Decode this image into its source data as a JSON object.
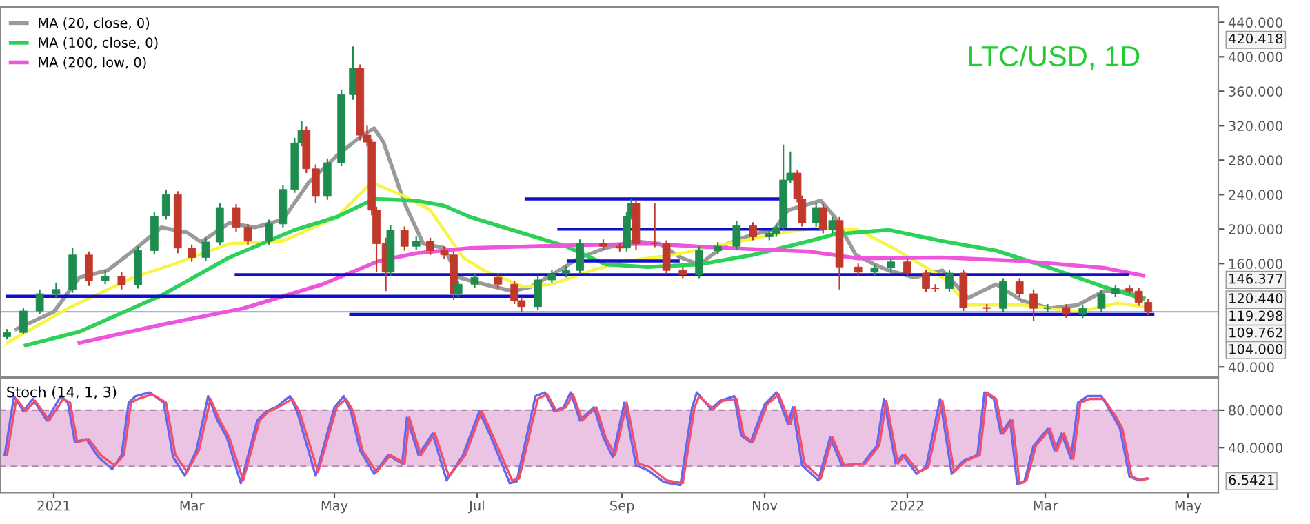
{
  "chart_data": [
    {
      "type": "candlestick",
      "title": "LTC/USD, 1D",
      "xlim": [
        "2020-12-09",
        "2022-05-14"
      ],
      "ylim": [
        28,
        458
      ],
      "yticks": [
        {
          "value": 40,
          "label": "40.000"
        },
        {
          "value": 160,
          "label": "160.000"
        },
        {
          "value": 200,
          "label": "200.000"
        },
        {
          "value": 240,
          "label": "240.000"
        },
        {
          "value": 280,
          "label": "280.000"
        },
        {
          "value": 320,
          "label": "320.000"
        },
        {
          "value": 360,
          "label": "360.000"
        },
        {
          "value": 400,
          "label": "400.000"
        },
        {
          "value": 440,
          "label": "440.000"
        }
      ],
      "tick_labels": "y",
      "grid": false,
      "legend": "top left",
      "x": [
        "2020-12-12",
        "2020-12-19",
        "2020-12-26",
        "2021-01-02",
        "2021-01-09",
        "2021-01-16",
        "2021-01-23",
        "2021-01-30",
        "2021-02-06",
        "2021-02-13",
        "2021-02-18",
        "2021-02-23",
        "2021-03-01",
        "2021-03-07",
        "2021-03-13",
        "2021-03-20",
        "2021-03-25",
        "2021-04-03",
        "2021-04-09",
        "2021-04-14",
        "2021-04-17",
        "2021-04-19",
        "2021-04-23",
        "2021-04-28",
        "2021-05-04",
        "2021-05-09",
        "2021-05-12",
        "2021-05-15",
        "2021-05-17",
        "2021-05-19",
        "2021-05-23",
        "2021-05-25",
        "2021-05-31",
        "2021-06-05",
        "2021-06-11",
        "2021-06-17",
        "2021-06-21",
        "2021-06-23",
        "2021-06-30",
        "2021-07-10",
        "2021-07-17",
        "2021-07-20",
        "2021-07-27",
        "2021-08-02",
        "2021-08-08",
        "2021-08-14",
        "2021-08-24",
        "2021-08-31",
        "2021-09-03",
        "2021-09-05",
        "2021-09-07",
        "2021-09-15",
        "2021-09-20",
        "2021-09-27",
        "2021-10-04",
        "2021-10-12",
        "2021-10-20",
        "2021-10-27",
        "2021-11-03",
        "2021-11-06",
        "2021-11-09",
        "2021-11-12",
        "2021-11-15",
        "2021-11-17",
        "2021-11-23",
        "2021-11-26",
        "2021-11-30",
        "2021-12-03",
        "2021-12-11",
        "2021-12-18",
        "2021-12-25",
        "2022-01-01",
        "2022-01-09",
        "2022-01-13",
        "2022-01-19",
        "2022-01-25",
        "2022-02-04",
        "2022-02-11",
        "2022-02-18",
        "2022-02-24",
        "2022-03-02",
        "2022-03-10",
        "2022-03-17",
        "2022-03-25",
        "2022-03-31",
        "2022-04-06",
        "2022-04-10",
        "2022-04-14"
      ],
      "ohlc": [
        [
          75,
          84,
          72,
          80
        ],
        [
          80,
          109,
          78,
          105
        ],
        [
          105,
          130,
          101,
          125
        ],
        [
          125,
          138,
          120,
          130
        ],
        [
          130,
          178,
          126,
          170
        ],
        [
          170,
          174,
          134,
          140
        ],
        [
          140,
          152,
          136,
          145
        ],
        [
          145,
          150,
          130,
          135
        ],
        [
          135,
          180,
          131,
          175
        ],
        [
          175,
          220,
          171,
          215
        ],
        [
          215,
          246,
          211,
          240
        ],
        [
          240,
          244,
          172,
          178
        ],
        [
          178,
          182,
          162,
          167
        ],
        [
          167,
          190,
          163,
          185
        ],
        [
          185,
          230,
          181,
          225
        ],
        [
          225,
          229,
          197,
          202
        ],
        [
          202,
          206,
          181,
          186
        ],
        [
          186,
          211,
          182,
          206
        ],
        [
          206,
          251,
          202,
          246
        ],
        [
          246,
          306,
          242,
          300
        ],
        [
          300,
          325,
          296,
          315
        ],
        [
          315,
          319,
          265,
          270
        ],
        [
          270,
          275,
          230,
          238
        ],
        [
          238,
          282,
          234,
          277
        ],
        [
          277,
          362,
          273,
          356
        ],
        [
          356,
          412,
          350,
          387
        ],
        [
          387,
          391,
          303,
          309
        ],
        [
          309,
          320,
          296,
          301
        ],
        [
          301,
          305,
          216,
          222
        ],
        [
          222,
          226,
          150,
          183
        ],
        [
          183,
          190,
          128,
          150
        ],
        [
          150,
          205,
          146,
          199
        ],
        [
          199,
          203,
          175,
          180
        ],
        [
          180,
          192,
          176,
          186
        ],
        [
          186,
          190,
          170,
          175
        ],
        [
          175,
          180,
          165,
          170
        ],
        [
          170,
          174,
          118,
          125
        ],
        [
          125,
          140,
          121,
          136
        ],
        [
          136,
          149,
          132,
          144
        ],
        [
          144,
          148,
          131,
          136
        ],
        [
          136,
          140,
          113,
          117
        ],
        [
          117,
          121,
          104,
          110
        ],
        [
          110,
          146,
          106,
          141
        ],
        [
          141,
          153,
          137,
          148
        ],
        [
          148,
          157,
          144,
          152
        ],
        [
          152,
          188,
          148,
          183
        ],
        [
          183,
          188,
          176,
          180
        ],
        [
          180,
          184,
          174,
          178
        ],
        [
          178,
          220,
          174,
          215
        ],
        [
          215,
          235,
          211,
          230
        ],
        [
          230,
          234,
          176,
          183
        ],
        [
          183,
          230,
          179,
          183
        ],
        [
          183,
          187,
          148,
          152
        ],
        [
          152,
          156,
          143,
          147
        ],
        [
          147,
          180,
          143,
          175
        ],
        [
          175,
          185,
          171,
          180
        ],
        [
          180,
          209,
          176,
          204
        ],
        [
          204,
          208,
          187,
          191
        ],
        [
          191,
          199,
          187,
          195
        ],
        [
          195,
          206,
          191,
          202
        ],
        [
          202,
          298,
          198,
          257
        ],
        [
          257,
          290,
          253,
          265
        ],
        [
          265,
          269,
          231,
          235
        ],
        [
          235,
          239,
          203,
          207
        ],
        [
          207,
          230,
          203,
          225
        ],
        [
          225,
          229,
          195,
          199
        ],
        [
          199,
          214,
          195,
          210
        ],
        [
          210,
          214,
          130,
          156
        ],
        [
          156,
          160,
          146,
          150
        ],
        [
          150,
          159,
          146,
          155
        ],
        [
          155,
          166,
          151,
          162
        ],
        [
          162,
          166,
          145,
          149
        ],
        [
          149,
          153,
          127,
          131
        ],
        [
          131,
          136,
          127,
          131
        ],
        [
          131,
          153,
          127,
          149
        ],
        [
          149,
          153,
          105,
          109
        ],
        [
          109,
          113,
          104,
          108
        ],
        [
          108,
          143,
          104,
          139
        ],
        [
          139,
          143,
          121,
          125
        ],
        [
          125,
          129,
          93,
          108
        ],
        [
          108,
          113,
          104,
          109
        ],
        [
          109,
          113,
          97,
          101
        ],
        [
          101,
          112,
          97,
          108
        ],
        [
          108,
          129,
          104,
          125
        ],
        [
          125,
          135,
          121,
          131
        ],
        [
          131,
          135,
          124,
          128
        ],
        [
          128,
          132,
          111,
          115
        ],
        [
          115,
          119,
          100,
          104
        ]
      ],
      "colors": [
        "#1e8c4e",
        "#1e8c4e",
        "#1e8c4e",
        "#1e8c4e",
        "#1e8c4e",
        "#c0392b",
        "#1e8c4e",
        "#c0392b",
        "#1e8c4e",
        "#1e8c4e",
        "#1e8c4e",
        "#c0392b",
        "#c0392b",
        "#1e8c4e",
        "#1e8c4e",
        "#c0392b",
        "#c0392b",
        "#1e8c4e",
        "#1e8c4e",
        "#1e8c4e",
        "#1e8c4e",
        "#c0392b",
        "#c0392b",
        "#1e8c4e",
        "#1e8c4e",
        "#1e8c4e",
        "#c0392b",
        "#c0392b",
        "#c0392b",
        "#c0392b",
        "#c0392b",
        "#1e8c4e",
        "#c0392b",
        "#1e8c4e",
        "#c0392b",
        "#c0392b",
        "#c0392b",
        "#1e8c4e",
        "#1e8c4e",
        "#c0392b",
        "#c0392b",
        "#c0392b",
        "#1e8c4e",
        "#1e8c4e",
        "#1e8c4e",
        "#1e8c4e",
        "#c0392b",
        "#c0392b",
        "#1e8c4e",
        "#1e8c4e",
        "#c0392b",
        "#c0392b",
        "#c0392b",
        "#c0392b",
        "#1e8c4e",
        "#1e8c4e",
        "#1e8c4e",
        "#c0392b",
        "#1e8c4e",
        "#1e8c4e",
        "#1e8c4e",
        "#1e8c4e",
        "#c0392b",
        "#c0392b",
        "#1e8c4e",
        "#c0392b",
        "#1e8c4e",
        "#c0392b",
        "#c0392b",
        "#1e8c4e",
        "#1e8c4e",
        "#c0392b",
        "#c0392b",
        "#c0392b",
        "#1e8c4e",
        "#c0392b",
        "#c0392b",
        "#1e8c4e",
        "#c0392b",
        "#c0392b",
        "#1e8c4e",
        "#c0392b",
        "#1e8c4e",
        "#1e8c4e",
        "#1e8c4e",
        "#c0392b",
        "#c0392b",
        "#c0392b"
      ],
      "series": [
        {
          "type": "line",
          "name": "MA (20, close, 0)",
          "color": "#9a9a9a",
          "x": [
            "2020-12-16",
            "2021-01-01",
            "2021-01-12",
            "2021-01-24",
            "2021-02-04",
            "2021-02-16",
            "2021-02-27",
            "2021-03-05",
            "2021-03-17",
            "2021-03-28",
            "2021-04-09",
            "2021-04-20",
            "2021-05-02",
            "2021-05-13",
            "2021-05-18",
            "2021-05-22",
            "2021-05-31",
            "2021-06-08",
            "2021-06-17",
            "2021-06-23",
            "2021-07-04",
            "2021-07-16",
            "2021-07-24",
            "2021-08-02",
            "2021-08-14",
            "2021-08-25",
            "2021-09-06",
            "2021-09-17",
            "2021-09-26",
            "2021-10-04",
            "2021-10-16",
            "2021-10-27",
            "2021-11-05",
            "2021-11-11",
            "2021-11-25",
            "2021-12-01",
            "2021-12-10",
            "2021-12-18",
            "2021-12-24",
            "2022-01-04",
            "2022-01-16",
            "2022-01-27",
            "2022-02-08",
            "2022-02-19",
            "2022-03-03",
            "2022-03-15",
            "2022-03-26",
            "2022-04-04",
            "2022-04-12"
          ],
          "values": [
            84,
            104,
            144,
            152,
            175,
            202,
            196,
            185,
            207,
            202,
            211,
            254,
            285,
            309,
            317,
            301,
            230,
            183,
            178,
            144,
            136,
            128,
            133,
            147,
            167,
            178,
            186,
            183,
            167,
            159,
            183,
            194,
            199,
            222,
            233,
            214,
            170,
            159,
            152,
            144,
            152,
            120,
            136,
            117,
            108,
            112,
            128,
            128,
            120
          ]
        },
        {
          "type": "line",
          "color": "#f5f542",
          "x": [
            "2020-12-12",
            "2021-01-07",
            "2021-02-04",
            "2021-02-21",
            "2021-03-17",
            "2021-04-09",
            "2021-05-02",
            "2021-05-17",
            "2021-05-31",
            "2021-06-11",
            "2021-06-25",
            "2021-07-04",
            "2021-07-21",
            "2021-08-02",
            "2021-08-19",
            "2021-09-06",
            "2021-09-23",
            "2021-10-16",
            "2021-11-09",
            "2021-11-25",
            "2021-12-11",
            "2021-12-26",
            "2022-01-16",
            "2022-01-27",
            "2022-02-19",
            "2022-03-15",
            "2022-04-01",
            "2022-04-12"
          ],
          "values": [
            68,
            108,
            144,
            159,
            183,
            186,
            214,
            254,
            238,
            222,
            167,
            152,
            133,
            136,
            152,
            164,
            170,
            183,
            196,
            202,
            199,
            178,
            144,
            112,
            112,
            104,
            114,
            110
          ]
        },
        {
          "type": "line",
          "name": "MA (100, close, 0)",
          "color": "#2ed158",
          "x": [
            "2020-12-20",
            "2021-01-12",
            "2021-02-16",
            "2021-03-17",
            "2021-04-14",
            "2021-05-02",
            "2021-05-18",
            "2021-06-05",
            "2021-06-17",
            "2021-06-28",
            "2021-07-16",
            "2021-08-08",
            "2021-08-25",
            "2021-09-12",
            "2021-10-04",
            "2021-10-27",
            "2021-11-20",
            "2021-12-01",
            "2021-12-24",
            "2022-01-16",
            "2022-02-08",
            "2022-03-03",
            "2022-03-26",
            "2022-04-12"
          ],
          "values": [
            65,
            81,
            123,
            167,
            199,
            214,
            235,
            233,
            227,
            214,
            199,
            180,
            159,
            156,
            159,
            170,
            186,
            194,
            199,
            186,
            175,
            155,
            133,
            119
          ]
        },
        {
          "type": "line",
          "name": "MA (200, low, 0)",
          "color": "#ee55dd",
          "x": [
            "2021-01-12",
            "2021-02-16",
            "2021-03-23",
            "2021-04-26",
            "2021-05-20",
            "2021-06-05",
            "2021-06-28",
            "2021-08-08",
            "2021-09-12",
            "2021-10-16",
            "2021-11-20",
            "2021-12-11",
            "2022-01-16",
            "2022-02-19",
            "2022-03-26",
            "2022-04-12"
          ],
          "values": [
            68,
            89,
            108,
            136,
            163,
            172,
            178,
            181,
            183,
            178,
            174,
            166,
            167,
            163,
            155,
            146
          ]
        },
        {
          "type": "line",
          "color": "#1010c8",
          "x": [
            "2020-12-12",
            "2021-07-28"
          ],
          "values": [
            122,
            122
          ]
        },
        {
          "type": "line",
          "color": "#1010c8",
          "x": [
            "2021-03-20",
            "2022-04-05"
          ],
          "values": [
            147,
            147
          ]
        },
        {
          "type": "line",
          "color": "#1010c8",
          "x": [
            "2021-05-08",
            "2022-04-16"
          ],
          "values": [
            101,
            101
          ]
        },
        {
          "type": "line",
          "color": "#1010c8",
          "x": [
            "2021-07-22",
            "2021-11-09"
          ],
          "values": [
            235,
            235
          ]
        },
        {
          "type": "line",
          "color": "#1010c8",
          "x": [
            "2021-08-05",
            "2021-11-25"
          ],
          "values": [
            200,
            200
          ]
        },
        {
          "type": "line",
          "color": "#1010c8",
          "x": [
            "2021-08-09",
            "2021-09-25"
          ],
          "values": [
            163,
            163
          ]
        }
      ],
      "ref_lines": [
        {
          "axis": "y",
          "value": 104,
          "color": "#9fb4e8"
        }
      ],
      "annotations": [
        "420.418",
        "146.377",
        "120.440",
        "119.298",
        "109.762",
        "104.000"
      ]
    },
    {
      "type": "line",
      "title": "Stoch (14, 1, 3)",
      "xlim": [
        "2020-12-09",
        "2022-05-14"
      ],
      "ylim": [
        -8,
        114
      ],
      "yticks": [
        {
          "value": 40,
          "label": "40.0000"
        },
        {
          "value": 80,
          "label": "80.0000"
        }
      ],
      "xticks": [
        {
          "value": "2021-01-01",
          "label": "2021"
        },
        {
          "value": "2021-03-01",
          "label": "Mar"
        },
        {
          "value": "2021-05-01",
          "label": "May"
        },
        {
          "value": "2021-07-01",
          "label": "Jul"
        },
        {
          "value": "2021-09-01",
          "label": "Sep"
        },
        {
          "value": "2021-11-01",
          "label": "Nov"
        },
        {
          "value": "2022-01-01",
          "label": "2022"
        },
        {
          "value": "2022-03-01",
          "label": "Mar"
        },
        {
          "value": "2022-05-01",
          "label": "May"
        }
      ],
      "grid": false,
      "bands": [
        {
          "axis": "y",
          "from": 20,
          "to": 80,
          "color": "#ebc3e3"
        }
      ],
      "ref_lines": [
        {
          "axis": "y",
          "value": 20,
          "color": "#b08aa8",
          "line_style": "dashed"
        },
        {
          "axis": "y",
          "value": 80,
          "color": "#b08aa8",
          "line_style": "dashed"
        }
      ],
      "series": [
        {
          "color": "#6666ee",
          "x": [
            "2020-12-11",
            "2020-12-15",
            "2020-12-19",
            "2020-12-23",
            "2020-12-29",
            "2021-01-04",
            "2021-01-07",
            "2021-01-10",
            "2021-01-15",
            "2021-01-20",
            "2021-01-26",
            "2021-01-30",
            "2021-02-02",
            "2021-02-05",
            "2021-02-11",
            "2021-02-17",
            "2021-02-21",
            "2021-02-26",
            "2021-03-03",
            "2021-03-08",
            "2021-03-12",
            "2021-03-16",
            "2021-03-22",
            "2021-03-29",
            "2021-04-02",
            "2021-04-06",
            "2021-04-12",
            "2021-04-15",
            "2021-04-23",
            "2021-05-01",
            "2021-05-05",
            "2021-05-08",
            "2021-05-12",
            "2021-05-18",
            "2021-05-24",
            "2021-05-30",
            "2021-06-01",
            "2021-06-06",
            "2021-06-12",
            "2021-06-18",
            "2021-06-25",
            "2021-07-02",
            "2021-07-07",
            "2021-07-15",
            "2021-07-18",
            "2021-07-26",
            "2021-07-30",
            "2021-08-03",
            "2021-08-07",
            "2021-08-10",
            "2021-08-14",
            "2021-08-20",
            "2021-08-24",
            "2021-08-28",
            "2021-09-02",
            "2021-09-07",
            "2021-09-12",
            "2021-09-19",
            "2021-09-26",
            "2021-10-01",
            "2021-10-03",
            "2021-10-09",
            "2021-10-13",
            "2021-10-19",
            "2021-10-22",
            "2021-10-26",
            "2021-11-01",
            "2021-11-06",
            "2021-11-11",
            "2021-11-13",
            "2021-11-17",
            "2021-11-24",
            "2021-11-29",
            "2021-12-04",
            "2021-12-13",
            "2021-12-19",
            "2021-12-22",
            "2021-12-27",
            "2021-12-30",
            "2022-01-05",
            "2022-01-09",
            "2022-01-15",
            "2022-01-20",
            "2022-01-25",
            "2022-01-31",
            "2022-02-03",
            "2022-02-07",
            "2022-02-10",
            "2022-02-14",
            "2022-02-17",
            "2022-02-20",
            "2022-02-24",
            "2022-03-02",
            "2022-03-05",
            "2022-03-08",
            "2022-03-12",
            "2022-03-15",
            "2022-03-19",
            "2022-03-25",
            "2022-03-30",
            "2022-04-02",
            "2022-04-06",
            "2022-04-10",
            "2022-04-13"
          ],
          "values": [
            32,
            95,
            79,
            92,
            69,
            95,
            88,
            46,
            49,
            30,
            17,
            32,
            88,
            95,
            99,
            88,
            30,
            10,
            37,
            95,
            69,
            51,
            2,
            69,
            79,
            83,
            95,
            79,
            10,
            83,
            95,
            79,
            37,
            12,
            32,
            23,
            72,
            32,
            55,
            5,
            32,
            79,
            51,
            2,
            4,
            95,
            99,
            79,
            83,
            99,
            69,
            83,
            51,
            30,
            88,
            21,
            16,
            3,
            0,
            83,
            99,
            81,
            90,
            95,
            53,
            46,
            86,
            99,
            65,
            83,
            21,
            5,
            51,
            21,
            23,
            42,
            92,
            23,
            32,
            12,
            19,
            92,
            12,
            26,
            32,
            99,
            92,
            55,
            69,
            1,
            3,
            42,
            60,
            37,
            55,
            28,
            88,
            95,
            95,
            74,
            60,
            9,
            5,
            7
          ]
        },
        {
          "color": "#f0506e",
          "x": [
            "2020-12-12",
            "2020-12-16",
            "2020-12-20",
            "2020-12-24",
            "2020-12-30",
            "2021-01-05",
            "2021-01-08",
            "2021-01-11",
            "2021-01-16",
            "2021-01-21",
            "2021-01-27",
            "2021-01-31",
            "2021-02-03",
            "2021-02-06",
            "2021-02-12",
            "2021-02-18",
            "2021-02-22",
            "2021-02-27",
            "2021-03-04",
            "2021-03-09",
            "2021-03-13",
            "2021-03-17",
            "2021-03-23",
            "2021-03-30",
            "2021-04-03",
            "2021-04-07",
            "2021-04-13",
            "2021-04-16",
            "2021-04-24",
            "2021-05-02",
            "2021-05-06",
            "2021-05-09",
            "2021-05-13",
            "2021-05-19",
            "2021-05-25",
            "2021-05-31",
            "2021-06-02",
            "2021-06-07",
            "2021-06-13",
            "2021-06-19",
            "2021-06-26",
            "2021-07-03",
            "2021-07-08",
            "2021-07-16",
            "2021-07-19",
            "2021-07-27",
            "2021-07-31",
            "2021-08-04",
            "2021-08-08",
            "2021-08-11",
            "2021-08-15",
            "2021-08-21",
            "2021-08-25",
            "2021-08-29",
            "2021-09-03",
            "2021-09-08",
            "2021-09-13",
            "2021-09-20",
            "2021-09-27",
            "2021-10-02",
            "2021-10-04",
            "2021-10-10",
            "2021-10-14",
            "2021-10-20",
            "2021-10-23",
            "2021-10-27",
            "2021-11-02",
            "2021-11-07",
            "2021-11-12",
            "2021-11-14",
            "2021-11-18",
            "2021-11-25",
            "2021-11-30",
            "2021-12-05",
            "2021-12-14",
            "2021-12-20",
            "2021-12-23",
            "2021-12-28",
            "2021-12-31",
            "2022-01-06",
            "2022-01-10",
            "2022-01-16",
            "2022-01-21",
            "2022-01-26",
            "2022-02-01",
            "2022-02-04",
            "2022-02-08",
            "2022-02-11",
            "2022-02-15",
            "2022-02-18",
            "2022-02-21",
            "2022-02-25",
            "2022-03-03",
            "2022-03-06",
            "2022-03-09",
            "2022-03-13",
            "2022-03-16",
            "2022-03-20",
            "2022-03-26",
            "2022-03-31",
            "2022-04-03",
            "2022-04-07",
            "2022-04-11",
            "2022-04-14"
          ],
          "values": [
            32,
            92,
            79,
            90,
            69,
            92,
            88,
            46,
            49,
            32,
            21,
            32,
            88,
            92,
            97,
            88,
            32,
            14,
            37,
            92,
            69,
            51,
            5,
            69,
            79,
            83,
            92,
            79,
            14,
            83,
            92,
            79,
            37,
            14,
            32,
            23,
            72,
            32,
            55,
            9,
            32,
            79,
            51,
            5,
            7,
            92,
            97,
            79,
            83,
            97,
            69,
            83,
            51,
            32,
            88,
            23,
            19,
            5,
            2,
            83,
            95,
            81,
            90,
            92,
            53,
            46,
            86,
            97,
            65,
            83,
            23,
            7,
            51,
            21,
            23,
            42,
            90,
            23,
            32,
            14,
            19,
            90,
            14,
            26,
            32,
            99,
            92,
            55,
            69,
            2,
            5,
            42,
            60,
            37,
            55,
            28,
            88,
            92,
            92,
            74,
            60,
            9,
            5,
            7
          ]
        }
      ],
      "annotations": [
        "6.5421"
      ]
    }
  ]
}
